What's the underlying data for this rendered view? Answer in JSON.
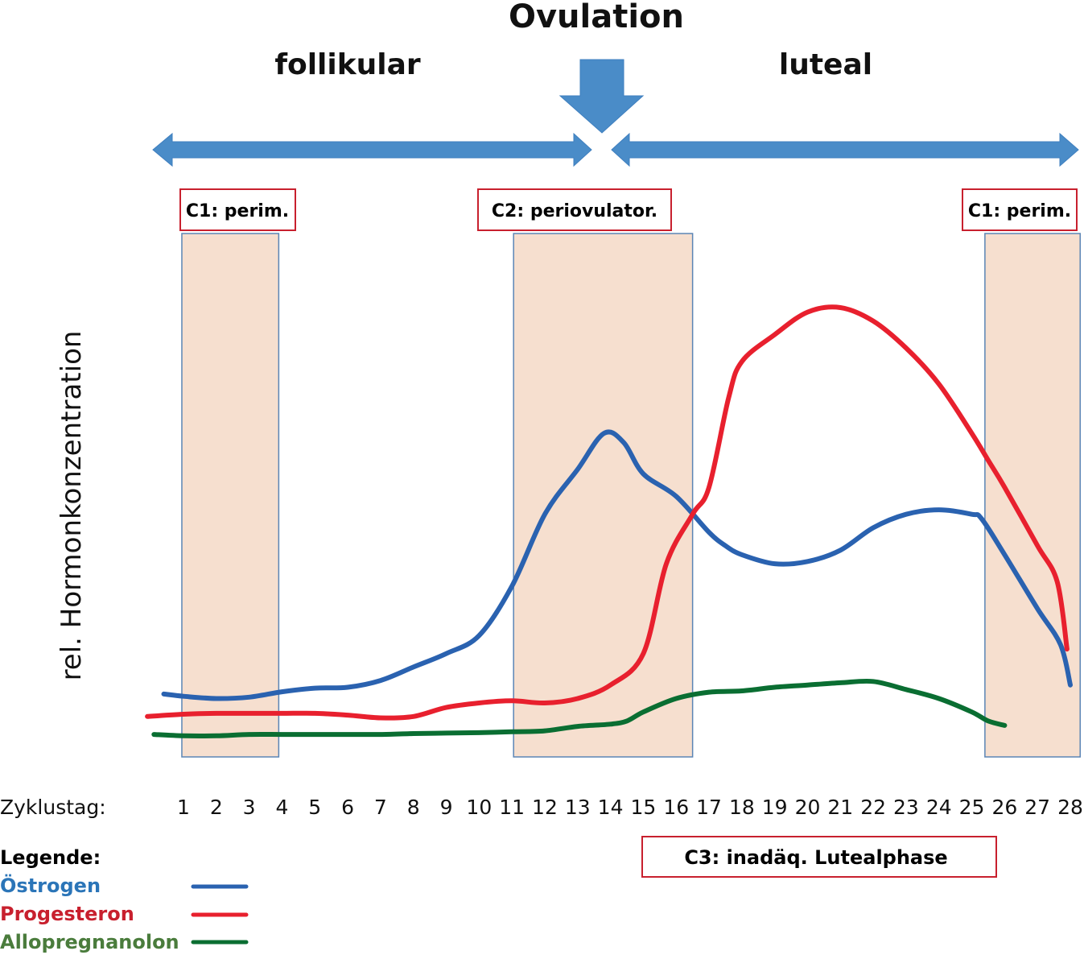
{
  "chart_data": {
    "type": "line",
    "title": "Ovulation",
    "phases": [
      {
        "label": "follikular",
        "from_day": 0,
        "to_day": 14.3
      },
      {
        "label": "luteal",
        "from_day": 15.1,
        "to_day": 28.3
      }
    ],
    "ovulation_day": 14.6,
    "xlabel": "Zyklustag:",
    "ylabel": "rel. Hormonkonzentration",
    "x": [
      1,
      2,
      3,
      4,
      5,
      6,
      7,
      8,
      9,
      10,
      11,
      12,
      13,
      14,
      15,
      16,
      17,
      18,
      19,
      20,
      21,
      22,
      23,
      24,
      25,
      26,
      27,
      28
    ],
    "xlim": [
      0,
      28.5
    ],
    "ylim": [
      0,
      1
    ],
    "grid": false,
    "highlight_regions": [
      {
        "label": "C1: perim.",
        "from_day": 0.95,
        "to_day": 3.9
      },
      {
        "label": "C2: periovulator.",
        "from_day": 11.05,
        "to_day": 16.5
      },
      {
        "label": "C1: perim.",
        "from_day": 25.4,
        "to_day": 28.3
      }
    ],
    "annotations": [
      {
        "label": "C3: inadäq. Lutealphase",
        "from_day": 16.8,
        "to_day": 26.0
      }
    ],
    "series": [
      {
        "name": "Östrogen",
        "color": "#2a62b0",
        "points": [
          [
            0.4,
            0.14
          ],
          [
            1,
            0.135
          ],
          [
            2,
            0.13
          ],
          [
            3,
            0.133
          ],
          [
            4,
            0.145
          ],
          [
            5,
            0.153
          ],
          [
            6,
            0.155
          ],
          [
            7,
            0.17
          ],
          [
            8,
            0.2
          ],
          [
            9,
            0.23
          ],
          [
            10,
            0.27
          ],
          [
            11,
            0.38
          ],
          [
            12,
            0.54
          ],
          [
            13,
            0.64
          ],
          [
            13.8,
            0.72
          ],
          [
            14.4,
            0.7
          ],
          [
            15,
            0.63
          ],
          [
            16,
            0.58
          ],
          [
            17,
            0.5
          ],
          [
            17.5,
            0.47
          ],
          [
            18,
            0.45
          ],
          [
            19,
            0.43
          ],
          [
            20,
            0.435
          ],
          [
            21,
            0.46
          ],
          [
            22,
            0.51
          ],
          [
            23,
            0.54
          ],
          [
            24,
            0.55
          ],
          [
            25,
            0.54
          ],
          [
            25.3,
            0.53
          ],
          [
            26,
            0.45
          ],
          [
            27,
            0.33
          ],
          [
            27.7,
            0.25
          ],
          [
            28,
            0.16
          ]
        ]
      },
      {
        "name": "Progesteron",
        "color": "#e8202e",
        "points": [
          [
            -0.1,
            0.09
          ],
          [
            1,
            0.095
          ],
          [
            2,
            0.097
          ],
          [
            3,
            0.097
          ],
          [
            4,
            0.097
          ],
          [
            5,
            0.097
          ],
          [
            6,
            0.093
          ],
          [
            7,
            0.087
          ],
          [
            8,
            0.09
          ],
          [
            9,
            0.11
          ],
          [
            10,
            0.12
          ],
          [
            11,
            0.125
          ],
          [
            12,
            0.12
          ],
          [
            13,
            0.13
          ],
          [
            14,
            0.16
          ],
          [
            15,
            0.23
          ],
          [
            15.7,
            0.43
          ],
          [
            16.5,
            0.54
          ],
          [
            17,
            0.6
          ],
          [
            17.6,
            0.8
          ],
          [
            18,
            0.88
          ],
          [
            19,
            0.94
          ],
          [
            20,
            0.99
          ],
          [
            21,
            1.0
          ],
          [
            22,
            0.97
          ],
          [
            23,
            0.91
          ],
          [
            24,
            0.83
          ],
          [
            25,
            0.72
          ],
          [
            25.5,
            0.66
          ],
          [
            26,
            0.6
          ],
          [
            27,
            0.47
          ],
          [
            27.6,
            0.39
          ],
          [
            27.9,
            0.24
          ]
        ]
      },
      {
        "name": "Allopregnanolon",
        "color": "#0a6e32",
        "points": [
          [
            0.1,
            0.05
          ],
          [
            1,
            0.047
          ],
          [
            2,
            0.047
          ],
          [
            3,
            0.05
          ],
          [
            4,
            0.05
          ],
          [
            5,
            0.05
          ],
          [
            6,
            0.05
          ],
          [
            7,
            0.05
          ],
          [
            8,
            0.052
          ],
          [
            9,
            0.053
          ],
          [
            10,
            0.054
          ],
          [
            11,
            0.056
          ],
          [
            12,
            0.058
          ],
          [
            13,
            0.068
          ],
          [
            14,
            0.073
          ],
          [
            14.5,
            0.08
          ],
          [
            15,
            0.1
          ],
          [
            16,
            0.13
          ],
          [
            17,
            0.144
          ],
          [
            18,
            0.147
          ],
          [
            19,
            0.155
          ],
          [
            20,
            0.16
          ],
          [
            21,
            0.165
          ],
          [
            22,
            0.168
          ],
          [
            23,
            0.15
          ],
          [
            24,
            0.13
          ],
          [
            25,
            0.1
          ],
          [
            25.5,
            0.08
          ],
          [
            26,
            0.07
          ]
        ]
      }
    ],
    "legend": {
      "title": "Legende:",
      "placement": "bottom-left",
      "entries": [
        {
          "label": "Östrogen",
          "color": "#2a62b0",
          "text_color": "#2b75b8"
        },
        {
          "label": "Progesteron",
          "color": "#e8202e",
          "text_color": "#c8202e"
        },
        {
          "label": "Allopregnanolon",
          "color": "#0a6e32",
          "text_color": "#4a7c3c"
        }
      ]
    }
  },
  "colors": {
    "arrow_blue": "#4a8cc8",
    "region_fill": "#f6dfcf",
    "region_stroke": "#5b85b5",
    "label_box_stroke": "#c8202e"
  }
}
